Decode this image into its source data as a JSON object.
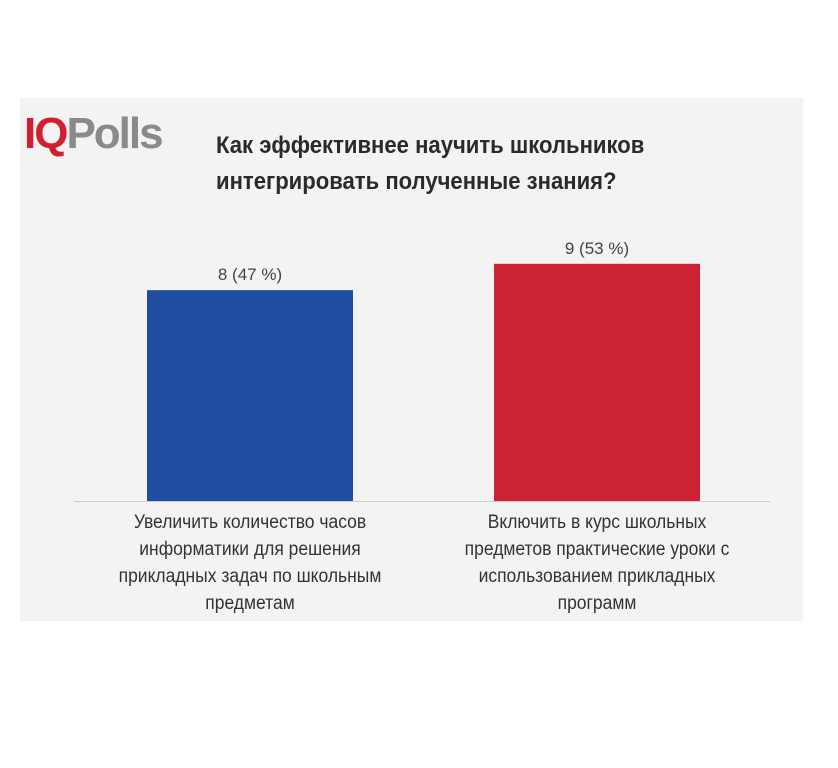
{
  "logo": {
    "iq": "IQ",
    "polls": "Polls"
  },
  "title": "Как эффективнее научить школьников интегрировать полученные знания?",
  "colors": {
    "bar1": "#1f4ea0",
    "bar2": "#cc2233",
    "logo_red": "#d0202f",
    "logo_gray": "#8a8a8a",
    "panel": "#f3f3f3"
  },
  "chart_data": {
    "type": "bar",
    "title": "Как эффективнее научить школьников интегрировать полученные знания?",
    "categories": [
      "Увеличить количество часов информатики для решения прикладных задач по школьным предметам",
      "Включить в курс школьных предметов практические уроки с использованием прикладных программ"
    ],
    "values": [
      8,
      9
    ],
    "percent": [
      47,
      53
    ],
    "data_labels": [
      "8 (47 %)",
      "9 (53 %)"
    ],
    "colors": [
      "#1f4ea0",
      "#cc2233"
    ],
    "ylim": [
      0,
      9.6
    ],
    "grid": false,
    "legend": "none"
  }
}
